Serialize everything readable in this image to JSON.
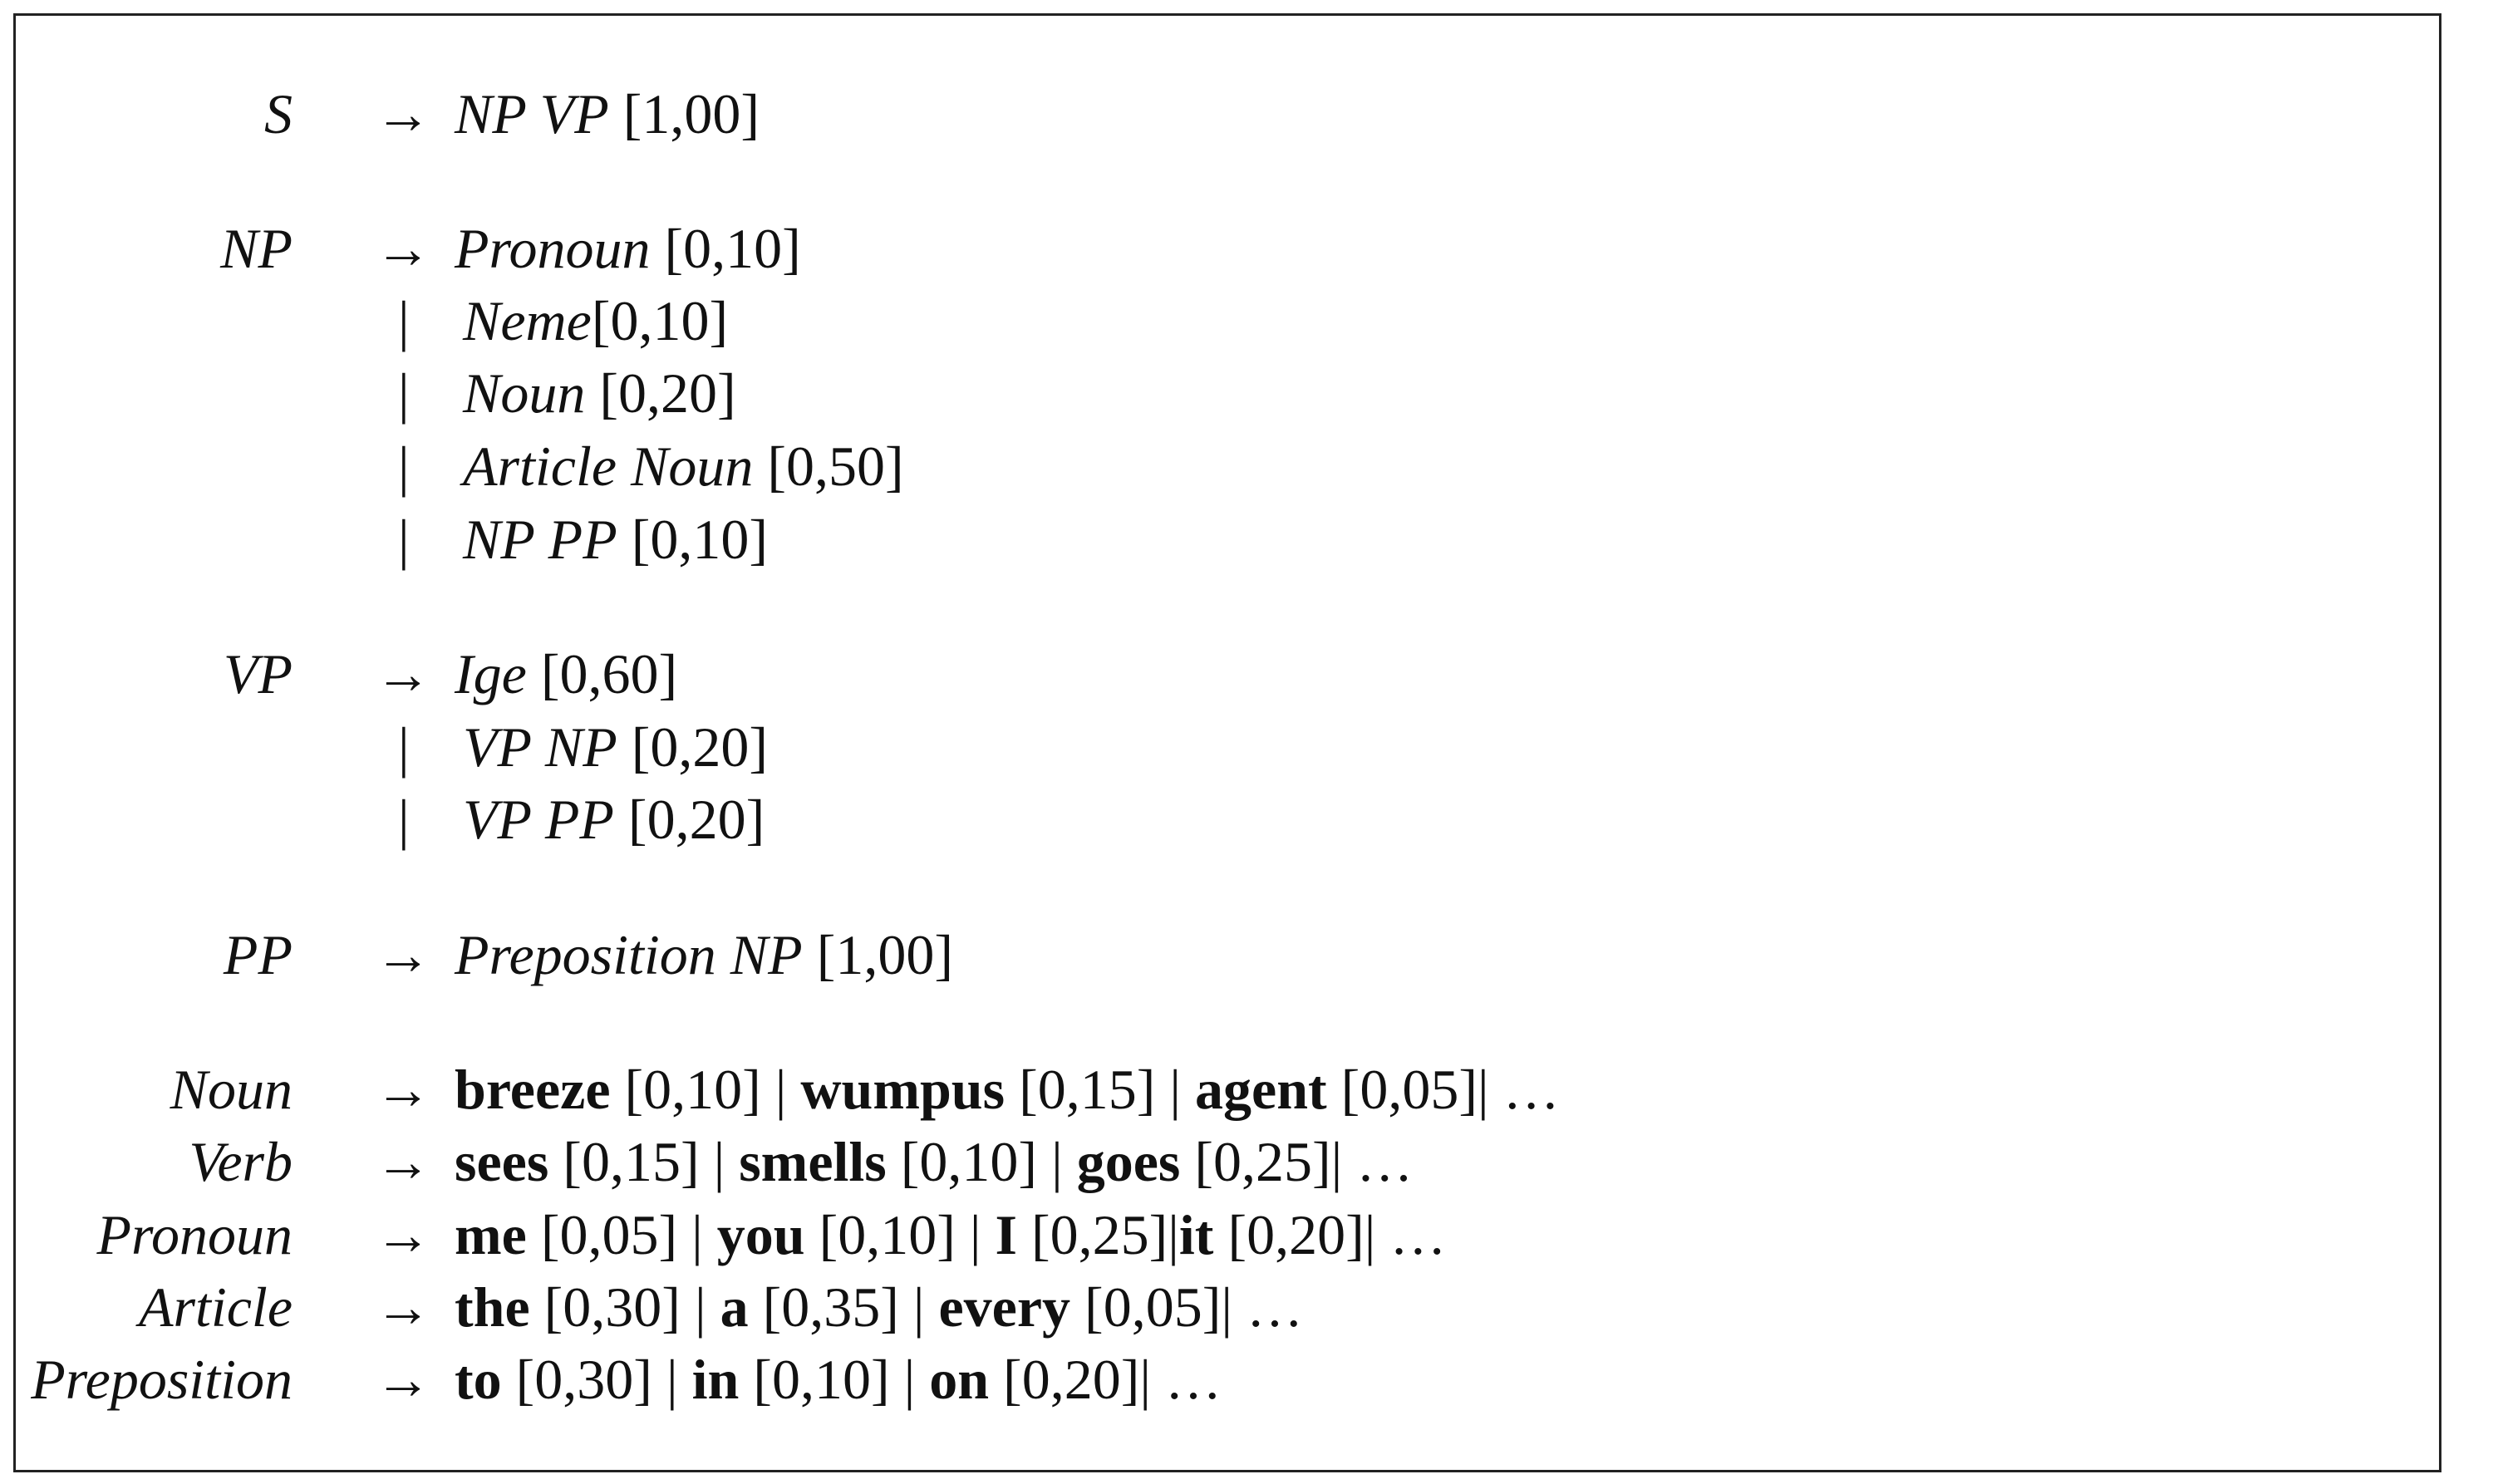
{
  "arrow": "→",
  "bar": "|",
  "sep": " | ",
  "ellipsis": "…",
  "rules": {
    "s": {
      "lhs": "S",
      "rhs": "NP VP",
      "prob": "[1,00]"
    },
    "np": {
      "lhs": "NP",
      "first": {
        "rhs": "Pronoun",
        "prob": "[0,10]"
      },
      "alts": [
        {
          "rhs": "Neme",
          "prob": "[0,10]"
        },
        {
          "rhs": "Noun",
          "prob": "[0,20]"
        },
        {
          "rhs": "Article Noun",
          "prob": "[0,50]"
        },
        {
          "rhs": "NP PP",
          "prob": "[0,10]"
        }
      ]
    },
    "vp": {
      "lhs": "VP",
      "first": {
        "rhs": "Ige",
        "prob": "[0,60]"
      },
      "alts": [
        {
          "rhs": "VP NP",
          "prob": "[0,20]"
        },
        {
          "rhs": "VP PP",
          "prob": "[0,20]"
        }
      ]
    },
    "pp": {
      "lhs": "PP",
      "rhs": "Preposition NP",
      "prob": "[1,00]"
    }
  },
  "lexicon": {
    "noun": {
      "lhs": "Noun",
      "words": [
        {
          "w": "breeze",
          "p": "[0,10]"
        },
        {
          "w": "wumpus",
          "p": "[0,15]"
        },
        {
          "w": "agent",
          "p": "[0,05]"
        }
      ]
    },
    "verb": {
      "lhs": "Verb",
      "words": [
        {
          "w": "sees",
          "p": "[0,15]"
        },
        {
          "w": "smells",
          "p": "[0,10]"
        },
        {
          "w": "goes",
          "p": "[0,25]"
        }
      ]
    },
    "pronoun": {
      "lhs": "Pronoun",
      "words": [
        {
          "w": "me",
          "p": "[0,05]"
        },
        {
          "w": "you",
          "p": "[0,10]"
        },
        {
          "w": "I",
          "p": "[0,25]"
        },
        {
          "w": "it",
          "p": "[0,20]"
        }
      ]
    },
    "article": {
      "lhs": "Article",
      "words": [
        {
          "w": "the",
          "p": "[0,30]"
        },
        {
          "w": "a",
          "p": "[0,35]"
        },
        {
          "w": "every",
          "p": "[0,05]"
        }
      ]
    },
    "preposition": {
      "lhs": "Preposition",
      "words": [
        {
          "w": "to",
          "p": "[0,30]"
        },
        {
          "w": "in",
          "p": "[0,10]"
        },
        {
          "w": "on",
          "p": "[0,20]"
        }
      ]
    }
  }
}
